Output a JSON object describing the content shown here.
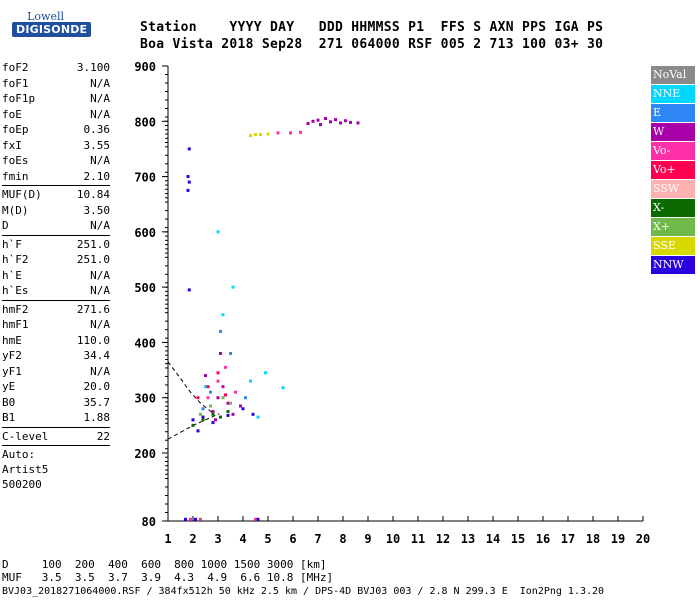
{
  "logo": {
    "top": "Lowell",
    "bottom": "DIGISONDE"
  },
  "header": {
    "labels": "Station    YYYY DAY   DDD HHMMSS P1  FFS S AXN PPS IGA PS",
    "values": "Boa Vista 2018 Sep28  271 064000 RSF 005 2 713 100 03+ 30"
  },
  "params": {
    "group1": [
      {
        "name": "foF2",
        "value": "3.100"
      },
      {
        "name": "foF1",
        "value": "N/A"
      },
      {
        "name": "foF1p",
        "value": "N/A"
      },
      {
        "name": "foE",
        "value": "N/A"
      },
      {
        "name": "foEp",
        "value": "0.36"
      },
      {
        "name": "fxI",
        "value": "3.55"
      },
      {
        "name": "foEs",
        "value": "N/A"
      },
      {
        "name": "fmin",
        "value": "2.10"
      }
    ],
    "group2": [
      {
        "name": "MUF(D)",
        "value": "10.84"
      },
      {
        "name": "M(D)",
        "value": "3.50"
      },
      {
        "name": "D",
        "value": "N/A"
      }
    ],
    "group3": [
      {
        "name": "h`F",
        "value": "251.0"
      },
      {
        "name": "h`F2",
        "value": "251.0"
      },
      {
        "name": "h`E",
        "value": "N/A"
      },
      {
        "name": "h`Es",
        "value": "N/A"
      }
    ],
    "group4": [
      {
        "name": "hmF2",
        "value": "271.6"
      },
      {
        "name": "hmF1",
        "value": "N/A"
      },
      {
        "name": "hmE",
        "value": "110.0"
      },
      {
        "name": "yF2",
        "value": "34.4"
      },
      {
        "name": "yF1",
        "value": "N/A"
      },
      {
        "name": "yE",
        "value": "20.0"
      },
      {
        "name": "B0",
        "value": "35.7"
      },
      {
        "name": "B1",
        "value": "1.88"
      }
    ],
    "group5": [
      {
        "name": "C-level",
        "value": "22"
      }
    ],
    "auto_lines": [
      "Auto:",
      "Artist5",
      "500200"
    ]
  },
  "legend": [
    {
      "label": "NoVal",
      "color": "#8a8a8a"
    },
    {
      "label": "NNE",
      "color": "#00d8ff"
    },
    {
      "label": "E",
      "color": "#2f86f5"
    },
    {
      "label": "W",
      "color": "#a800a8"
    },
    {
      "label": "Vo-",
      "color": "#ff2fa8"
    },
    {
      "label": "Vo+",
      "color": "#ff0050"
    },
    {
      "label": "SSW",
      "color": "#ffb0b0"
    },
    {
      "label": "X-",
      "color": "#0a6a00"
    },
    {
      "label": "X+",
      "color": "#6fb84a"
    },
    {
      "label": "SSE",
      "color": "#d8d800"
    },
    {
      "label": "NNW",
      "color": "#2a00e0"
    }
  ],
  "bottom": {
    "d_row": "D     100  200  400  600  800 1000 1500 3000 [km]",
    "muf_row": "MUF   3.5  3.5  3.7  3.9  4.3  4.9  6.6 10.8 [MHz]",
    "footer": "BVJ03_2018271064000.RSF / 384fx512h 50 kHz 2.5 km / DPS-4D BVJ03 003 / 2.8 N 299.3 E  Ion2Png 1.3.20"
  },
  "chart_data": {
    "type": "scatter",
    "title": "",
    "xlabel": "",
    "ylabel": "",
    "xlim": [
      1,
      20
    ],
    "ylim": [
      80,
      900
    ],
    "x_ticks": [
      1,
      2,
      3,
      4,
      5,
      6,
      7,
      8,
      9,
      10,
      11,
      12,
      13,
      14,
      15,
      16,
      17,
      18,
      19,
      20
    ],
    "y_ticks": [
      80,
      200,
      300,
      400,
      500,
      600,
      700,
      800,
      900
    ],
    "series": [
      {
        "name": "W",
        "color": "#a800a8",
        "points": [
          [
            6.6,
            796
          ],
          [
            6.8,
            800
          ],
          [
            7.0,
            802
          ],
          [
            7.1,
            794
          ],
          [
            7.3,
            805
          ],
          [
            7.5,
            799
          ],
          [
            7.7,
            803
          ],
          [
            7.9,
            797
          ],
          [
            8.1,
            801
          ],
          [
            8.3,
            798
          ],
          [
            8.6,
            797
          ],
          [
            2.8,
            275
          ],
          [
            3.0,
            300
          ],
          [
            3.2,
            320
          ],
          [
            3.4,
            290
          ],
          [
            3.6,
            270
          ],
          [
            3.9,
            285
          ],
          [
            2.5,
            340
          ],
          [
            3.1,
            380
          ],
          [
            2.9,
            260
          ]
        ]
      },
      {
        "name": "Vo-",
        "color": "#ff2fa8",
        "points": [
          [
            5.4,
            779
          ],
          [
            5.9,
            779
          ],
          [
            6.3,
            780
          ],
          [
            2.6,
            300
          ],
          [
            3.0,
            330
          ],
          [
            3.3,
            355
          ],
          [
            3.7,
            310
          ],
          [
            1.9,
            83
          ],
          [
            2.3,
            83
          ],
          [
            4.5,
            83
          ]
        ]
      },
      {
        "name": "NNW",
        "color": "#2a00e0",
        "points": [
          [
            1.85,
            750
          ],
          [
            1.8,
            700
          ],
          [
            1.85,
            690
          ],
          [
            1.8,
            675
          ],
          [
            1.85,
            495
          ],
          [
            2.0,
            260
          ],
          [
            2.4,
            265
          ],
          [
            2.8,
            255
          ],
          [
            3.4,
            268
          ],
          [
            4.0,
            280
          ],
          [
            4.4,
            270
          ],
          [
            2.2,
            240
          ],
          [
            1.7,
            83
          ],
          [
            2.1,
            83
          ],
          [
            4.6,
            83
          ]
        ]
      },
      {
        "name": "SSE",
        "color": "#d8d800",
        "points": [
          [
            4.3,
            774
          ],
          [
            4.5,
            776
          ],
          [
            4.7,
            776
          ],
          [
            5.0,
            777
          ]
        ]
      },
      {
        "name": "X-",
        "color": "#0a6a00",
        "points": [
          [
            2.0,
            250
          ],
          [
            2.4,
            260
          ],
          [
            2.8,
            270
          ],
          [
            3.1,
            265
          ],
          [
            3.4,
            275
          ]
        ]
      },
      {
        "name": "X+",
        "color": "#6fb84a",
        "points": [
          [
            2.3,
            270
          ],
          [
            2.7,
            285
          ],
          [
            3.2,
            300
          ],
          [
            3.5,
            290
          ]
        ]
      },
      {
        "name": "NNE",
        "color": "#00d8ff",
        "points": [
          [
            3.6,
            500
          ],
          [
            3.2,
            450
          ],
          [
            4.3,
            330
          ],
          [
            4.9,
            345
          ],
          [
            5.6,
            318
          ],
          [
            3.0,
            600
          ],
          [
            2.5,
            320
          ],
          [
            4.6,
            265
          ]
        ]
      },
      {
        "name": "E",
        "color": "#2f86f5",
        "points": [
          [
            3.1,
            420
          ],
          [
            3.5,
            380
          ],
          [
            2.7,
            310
          ],
          [
            4.1,
            300
          ],
          [
            2.4,
            280
          ]
        ]
      },
      {
        "name": "Vo+",
        "color": "#ff0050",
        "points": [
          [
            2.6,
            320
          ],
          [
            3.0,
            345
          ],
          [
            3.3,
            305
          ],
          [
            2.2,
            300
          ]
        ]
      }
    ],
    "trace_lines": [
      {
        "name": "o-trace",
        "points": [
          [
            1.0,
            225
          ],
          [
            1.6,
            240
          ],
          [
            2.1,
            252
          ],
          [
            2.6,
            262
          ],
          [
            3.05,
            271
          ]
        ]
      },
      {
        "name": "x-trace",
        "points": [
          [
            1.0,
            365
          ],
          [
            1.5,
            335
          ],
          [
            1.9,
            310
          ],
          [
            2.3,
            290
          ],
          [
            2.8,
            272
          ]
        ]
      }
    ]
  }
}
